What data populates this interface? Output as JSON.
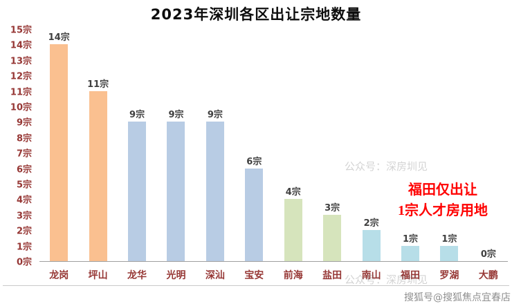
{
  "chart_data": {
    "type": "bar",
    "title": "2023年深圳各区出让宗地数量",
    "categories": [
      "龙岗",
      "坪山",
      "龙华",
      "光明",
      "深汕",
      "宝安",
      "前海",
      "盐田",
      "南山",
      "福田",
      "罗湖",
      "大鹏"
    ],
    "values": [
      14,
      11,
      9,
      9,
      9,
      6,
      4,
      3,
      2,
      1,
      1,
      0
    ],
    "data_labels": [
      "14宗",
      "11宗",
      "9宗",
      "9宗",
      "9宗",
      "6宗",
      "4宗",
      "3宗",
      "2宗",
      "1宗",
      "1宗",
      "0宗"
    ],
    "unit": "宗",
    "y_tick_labels": [
      "0宗",
      "1宗",
      "2宗",
      "3宗",
      "4宗",
      "5宗",
      "6宗",
      "7宗",
      "8宗",
      "9宗",
      "10宗",
      "11宗",
      "12宗",
      "13宗",
      "14宗",
      "15宗"
    ],
    "ylim": [
      0,
      15
    ],
    "grid": false,
    "legend": "none",
    "bar_colors": [
      "#FAC090",
      "#FAC090",
      "#B8CCE4",
      "#B8CCE4",
      "#B8CCE4",
      "#B8CCE4",
      "#D6E4BC",
      "#D6E4BC",
      "#B7DEE8",
      "#B7DEE8",
      "#B7DEE8",
      "#B7DEE8"
    ],
    "axis_label_color": "#963735",
    "data_label_color": "#3F3F3F",
    "annotation": {
      "line1": "福田仅出让",
      "line2": "1宗人才房用地",
      "color": "#FF0000"
    }
  },
  "watermarks": {
    "wechat": "公众号：深房圳见",
    "sohu": "搜狐号@搜狐焦点宜春店"
  }
}
